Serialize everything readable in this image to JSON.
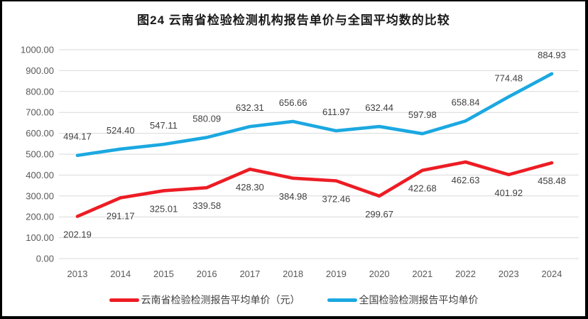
{
  "title": "图24 云南省检验检测机构报告单价与全国平均数的比较",
  "colors": {
    "yunnan_red": "#ed1c24",
    "national_blue": "#1ba8e1",
    "grid": "#d9d9d9",
    "tick_text": "#595959",
    "data_label_text": "#3f3f3f",
    "title_text": "#1a1a1a",
    "frame_border": "#000000"
  },
  "chart_data": {
    "type": "line",
    "title": "图24 云南省检验检测机构报告单价与全国平均数的比较",
    "x": [
      "2013",
      "2014",
      "2015",
      "2016",
      "2017",
      "2018",
      "2019",
      "2020",
      "2021",
      "2022",
      "2023",
      "2024"
    ],
    "series": [
      {
        "id": "yunnan",
        "name": "云南省检验检测报告平均单价（元）",
        "color": "#ed1c24",
        "label_position": "below",
        "values": [
          202.19,
          291.17,
          325.01,
          339.58,
          428.3,
          384.98,
          372.46,
          299.67,
          422.68,
          462.63,
          401.92,
          458.48
        ]
      },
      {
        "id": "national",
        "name": "全国检验检测报告平均单价",
        "color": "#1ba8e1",
        "label_position": "above",
        "values": [
          494.17,
          524.4,
          547.11,
          580.09,
          632.31,
          656.66,
          611.97,
          632.44,
          597.98,
          658.84,
          774.48,
          884.93
        ]
      }
    ],
    "ylim": [
      0,
      1000
    ],
    "ytick_step": 100,
    "value_decimals": 2,
    "grid": true,
    "data_labels": true,
    "legend_position": "bottom",
    "xlabel": "",
    "ylabel": ""
  }
}
